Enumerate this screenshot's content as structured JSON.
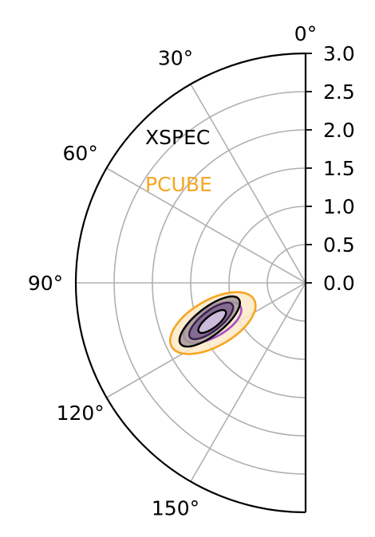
{
  "chart_data": {
    "type": "polar",
    "sector": "half-polar (0° to 180°)",
    "angle_ticks": [
      "0°",
      "30°",
      "60°",
      "90°",
      "120°",
      "150°"
    ],
    "angle_tick_values": [
      0,
      30,
      60,
      90,
      120,
      150
    ],
    "radial_ticks": [
      "0.0",
      "0.5",
      "1.0",
      "1.5",
      "2.0",
      "2.5",
      "3.0"
    ],
    "radial_tick_values": [
      0.0,
      0.5,
      1.0,
      1.5,
      2.0,
      2.5,
      3.0
    ],
    "rlim": [
      0,
      3.0
    ],
    "grid": true,
    "legend": [
      {
        "label": "XSPEC",
        "color": "#000000"
      },
      {
        "label": "PCUBE",
        "color": "#f5a623"
      }
    ],
    "contours": [
      {
        "series": "PCUBE",
        "level": "outer",
        "color": "#f5a623",
        "fill": "#fde9c8",
        "center_angle_deg": 113.5,
        "center_r": 1.32,
        "semi_major": 0.62,
        "semi_minor": 0.3,
        "tilt_deg": -30
      },
      {
        "series": "PCUBE",
        "level": "middle",
        "color": "#a64fc4",
        "fill": "none",
        "center_angle_deg": 113,
        "center_r": 1.32,
        "semi_major": 0.42,
        "semi_minor": 0.19,
        "tilt_deg": -30
      },
      {
        "series": "XSPEC",
        "level": "outer",
        "color": "#000000",
        "fill": "#a49a9a",
        "center_angle_deg": 112,
        "center_r": 1.35,
        "semi_major": 0.48,
        "semi_minor": 0.18,
        "tilt_deg": -38
      },
      {
        "series": "XSPEC",
        "level": "middle",
        "color": "#3a1f4a",
        "fill": "#7b608f",
        "center_angle_deg": 112,
        "center_r": 1.33,
        "semi_major": 0.35,
        "semi_minor": 0.13,
        "tilt_deg": -38
      },
      {
        "series": "XSPEC",
        "level": "inner",
        "color": "#000000",
        "fill": "#d8c9e8",
        "center_angle_deg": 112.5,
        "center_r": 1.32,
        "semi_major": 0.22,
        "semi_minor": 0.08,
        "tilt_deg": -38
      }
    ]
  }
}
